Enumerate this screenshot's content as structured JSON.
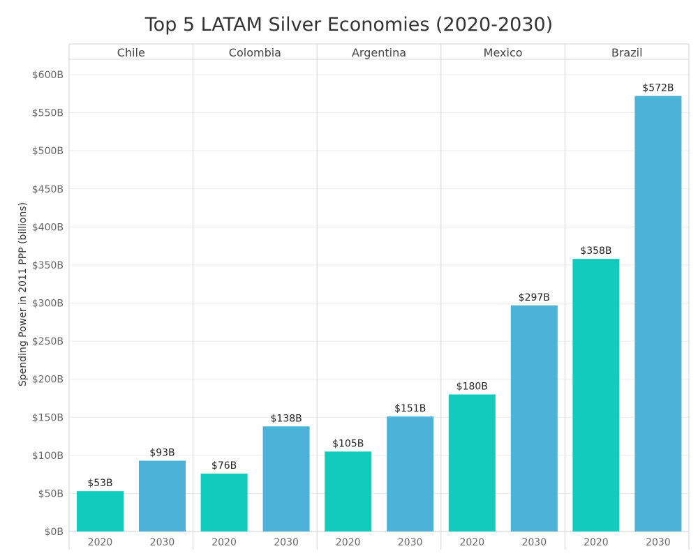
{
  "chart_data": {
    "type": "bar",
    "title": "Top 5 LATAM Silver Economies (2020-2030)",
    "ylabel": "Spending Power in 2011 PPP (billions)",
    "xlabel": "",
    "ylim": [
      0,
      600
    ],
    "yticks": [
      0,
      50,
      100,
      150,
      200,
      250,
      300,
      350,
      400,
      450,
      500,
      550,
      600
    ],
    "ytick_labels": [
      "$0B",
      "$50B",
      "$100B",
      "$150B",
      "$200B",
      "$250B",
      "$300B",
      "$350B",
      "$400B",
      "$450B",
      "$500B",
      "$550B",
      "$600B"
    ],
    "grid": true,
    "panels": [
      "Chile",
      "Colombia",
      "Argentina",
      "Mexico",
      "Brazil"
    ],
    "categories": [
      "2020",
      "2030"
    ],
    "colors": {
      "2020": "#11cbbc",
      "2030": "#4cb2d8"
    },
    "values": [
      {
        "panel": "Chile",
        "2020": 53,
        "2030": 93,
        "labels": [
          "$53B",
          "$93B"
        ]
      },
      {
        "panel": "Colombia",
        "2020": 76,
        "2030": 138,
        "labels": [
          "$76B",
          "$138B"
        ]
      },
      {
        "panel": "Argentina",
        "2020": 105,
        "2030": 151,
        "labels": [
          "$105B",
          "$151B"
        ]
      },
      {
        "panel": "Mexico",
        "2020": 180,
        "2030": 297,
        "labels": [
          "$180B",
          "$297B"
        ]
      },
      {
        "panel": "Brazil",
        "2020": 358,
        "2030": 572,
        "labels": [
          "$358B",
          "$572B"
        ]
      }
    ]
  }
}
